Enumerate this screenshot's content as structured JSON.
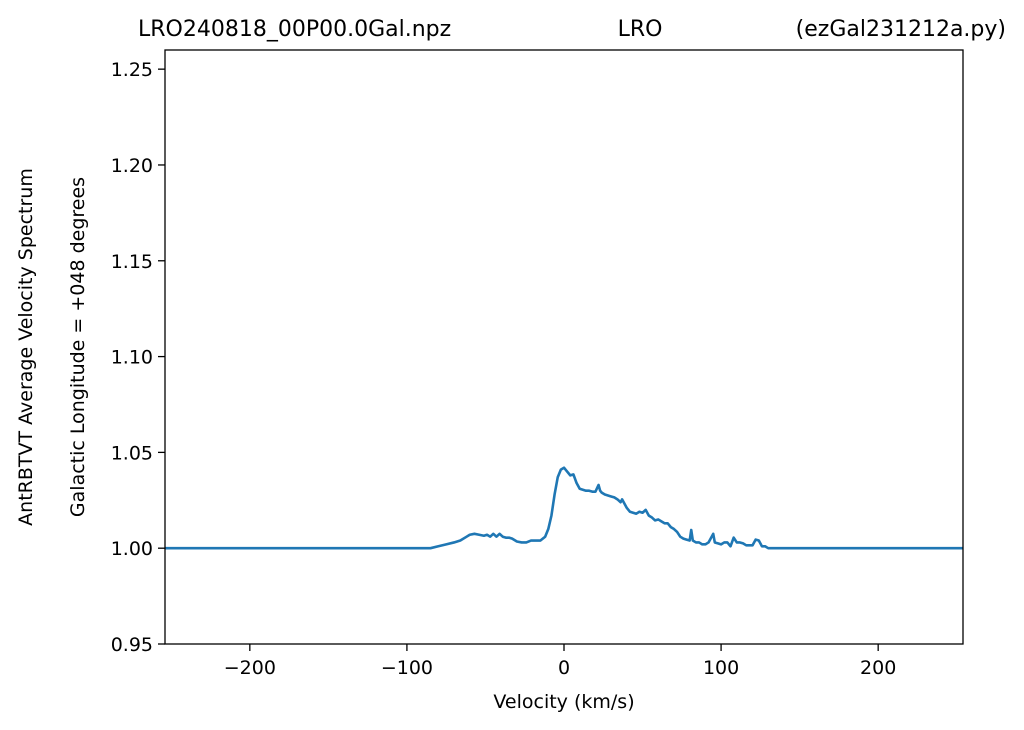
{
  "title": {
    "left": "LRO240818_00P00.0Gal.npz",
    "center": "LRO",
    "right": "(ezGal231212a.py)"
  },
  "chart_data": {
    "type": "line",
    "xlabel": "Velocity (km/s)",
    "ylabel_line1": "AntRBTVT Average Velocity Spectrum",
    "ylabel_line2": "Galactic Longitude = +048 degrees",
    "xlim": [
      -254,
      254
    ],
    "ylim": [
      0.95,
      1.26
    ],
    "xticks": [
      -200,
      -100,
      0,
      100,
      200
    ],
    "xtick_labels": [
      "−200",
      "−100",
      "0",
      "100",
      "200"
    ],
    "yticks": [
      0.95,
      1.0,
      1.05,
      1.1,
      1.15,
      1.2,
      1.25
    ],
    "ytick_labels": [
      "0.95",
      "1.00",
      "1.05",
      "1.10",
      "1.15",
      "1.20",
      "1.25"
    ],
    "grid": false,
    "line_color": "#1f77b4",
    "series": [
      {
        "x": [
          -254,
          -90,
          -85,
          -80,
          -75,
          -70,
          -66,
          -62,
          -60,
          -57,
          -54,
          -51,
          -49,
          -47,
          -45,
          -43,
          -41,
          -39,
          -37,
          -35,
          -33,
          -30,
          -27,
          -24,
          -21,
          -18,
          -15,
          -12,
          -10,
          -8,
          -6,
          -4,
          -2,
          0,
          2,
          4,
          6,
          8,
          10,
          12,
          14,
          16,
          18,
          20,
          22,
          23,
          24,
          26,
          28,
          30,
          32,
          34,
          36,
          37,
          38,
          40,
          42,
          44,
          46,
          48,
          50,
          52,
          54,
          56,
          58,
          60,
          62,
          64,
          66,
          68,
          70,
          72,
          74,
          76,
          78,
          80,
          81,
          82,
          84,
          86,
          88,
          90,
          92,
          94,
          95,
          96,
          98,
          100,
          102,
          104,
          106,
          108,
          110,
          112,
          114,
          116,
          118,
          120,
          122,
          124,
          126,
          128,
          130,
          132,
          254
        ],
        "y": [
          1.0,
          1.0,
          1.0,
          1.001,
          1.002,
          1.003,
          1.004,
          1.006,
          1.007,
          1.0075,
          1.007,
          1.0065,
          1.007,
          1.006,
          1.0075,
          1.006,
          1.0075,
          1.006,
          1.0055,
          1.0055,
          1.005,
          1.0035,
          1.003,
          1.003,
          1.004,
          1.004,
          1.004,
          1.006,
          1.01,
          1.017,
          1.028,
          1.037,
          1.041,
          1.042,
          1.04,
          1.038,
          1.0385,
          1.034,
          1.031,
          1.0305,
          1.03,
          1.03,
          1.0295,
          1.0295,
          1.033,
          1.03,
          1.029,
          1.028,
          1.0275,
          1.027,
          1.0265,
          1.0255,
          1.024,
          1.0255,
          1.024,
          1.021,
          1.019,
          1.0185,
          1.018,
          1.019,
          1.0185,
          1.02,
          1.017,
          1.016,
          1.0145,
          1.015,
          1.014,
          1.013,
          1.013,
          1.011,
          1.01,
          1.0085,
          1.006,
          1.005,
          1.0045,
          1.004,
          1.0095,
          1.004,
          1.003,
          1.003,
          1.002,
          1.002,
          1.003,
          1.006,
          1.0075,
          1.003,
          1.0025,
          1.002,
          1.003,
          1.003,
          1.001,
          1.0055,
          1.003,
          1.003,
          1.0025,
          1.0015,
          1.0015,
          1.0015,
          1.0045,
          1.004,
          1.001,
          1.001,
          1.0,
          1.0,
          1.0
        ]
      }
    ]
  }
}
